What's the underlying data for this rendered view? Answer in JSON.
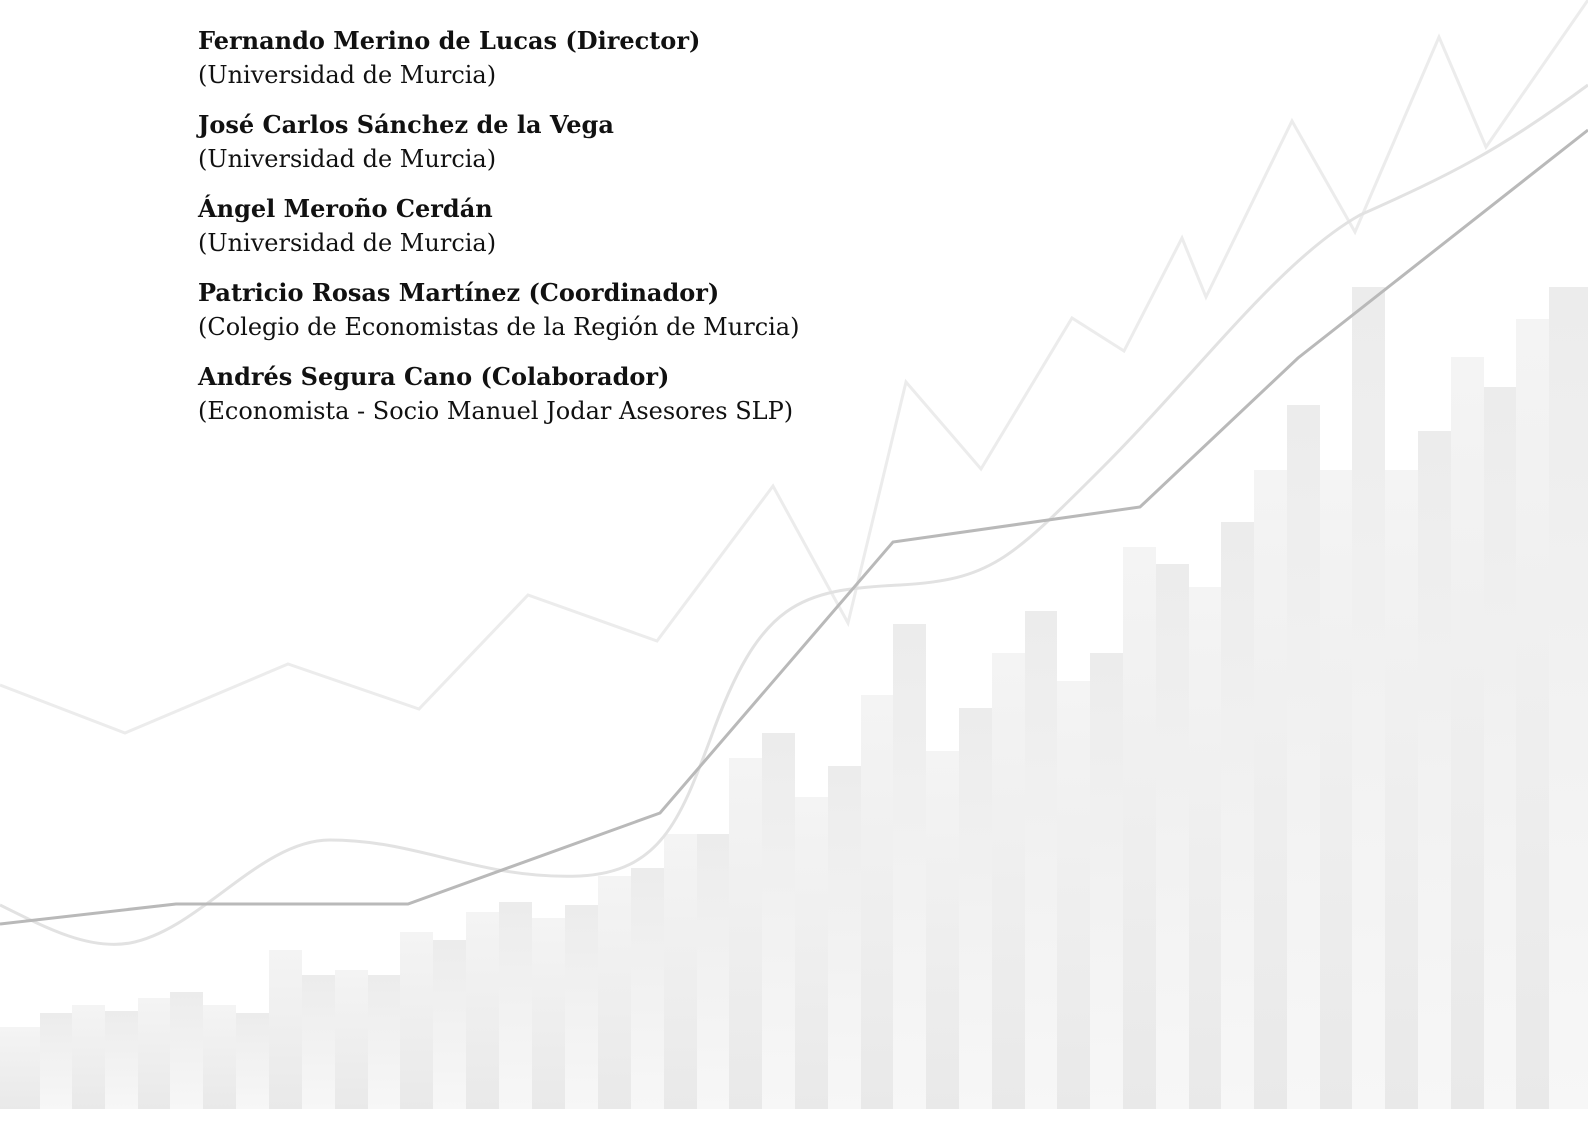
{
  "people": [
    {
      "name": "Fernando Merino de Lucas (Director)",
      "affiliation": "(Universidad de Murcia)"
    },
    {
      "name": "José Carlos Sánchez de la Vega",
      "affiliation": "(Universidad de Murcia)"
    },
    {
      "name": "Ángel Meroño Cerdán",
      "affiliation": "(Universidad de Murcia)"
    },
    {
      "name": "Patricio Rosas Martínez (Coordinador)",
      "affiliation": "(Colegio de Economistas de la Región de Murcia)"
    },
    {
      "name": "Andrés Segura Cano (Colaborador)",
      "affiliation": "(Economista - Socio Manuel Jodar Asesores SLP)"
    }
  ]
}
